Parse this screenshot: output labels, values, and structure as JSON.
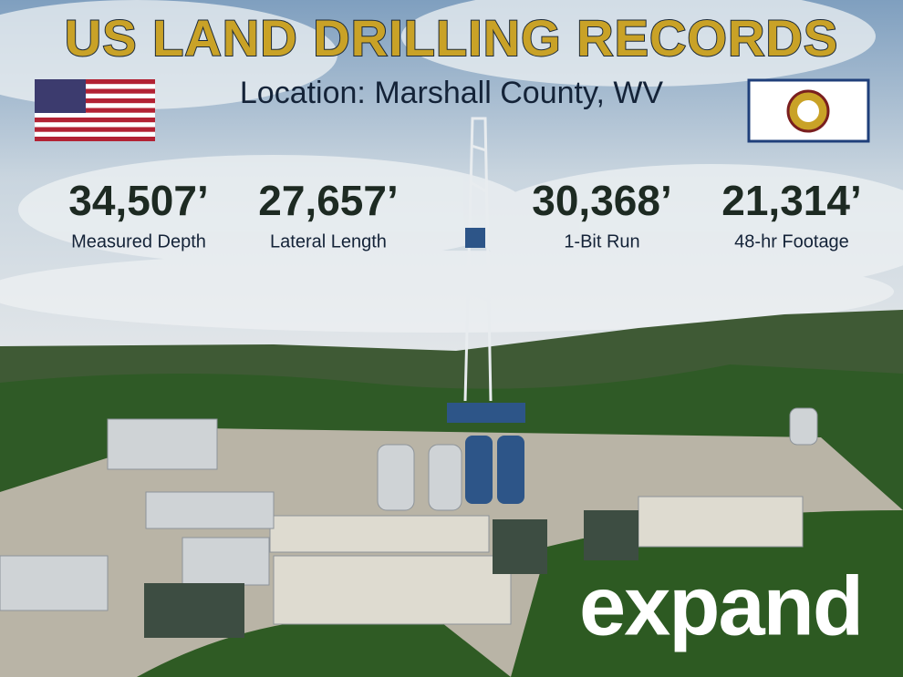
{
  "header": {
    "title": "US LAND DRILLING RECORDS",
    "location": "Location: Marshall County, WV"
  },
  "stats": [
    {
      "value": "34,507’",
      "label": "Measured Depth"
    },
    {
      "value": "27,657’",
      "label": "Lateral Length"
    },
    {
      "value": "30,368’",
      "label": "1-Bit Run"
    },
    {
      "value": "21,314’",
      "label": "48-hr Footage"
    }
  ],
  "logo": "expand"
}
